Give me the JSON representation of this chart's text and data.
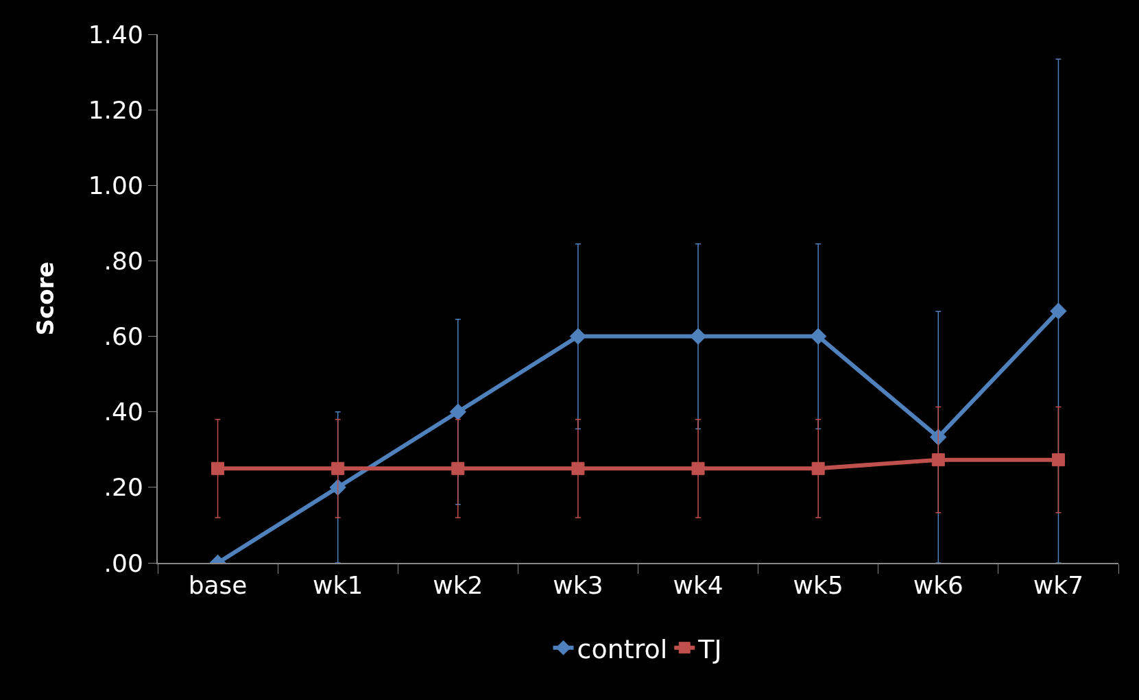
{
  "chart_data": {
    "type": "line",
    "ylabel": "Score",
    "categories": [
      "base",
      "wk1",
      "wk2",
      "wk3",
      "wk4",
      "wk5",
      "wk6",
      "wk7"
    ],
    "series": [
      {
        "name": "control",
        "color": "#4f81bd",
        "marker": "diamond",
        "values": [
          0,
          0.2,
          0.4,
          0.6,
          0.6,
          0.6,
          0.333,
          0.667
        ],
        "errors": [
          null,
          0.2,
          0.245,
          0.245,
          0.245,
          0.245,
          0.333,
          0.667
        ]
      },
      {
        "name": "TJ",
        "color": "#c0504d",
        "marker": "square",
        "values": [
          0.25,
          0.25,
          0.25,
          0.25,
          0.25,
          0.25,
          0.273,
          0.273
        ],
        "errors": [
          0.13,
          0.13,
          0.13,
          0.13,
          0.13,
          0.13,
          0.14,
          0.14
        ]
      }
    ],
    "ylim": [
      0,
      1.4
    ],
    "yticks": [
      {
        "value": 0,
        "label": ".00"
      },
      {
        "value": 0.2,
        "label": ".20"
      },
      {
        "value": 0.4,
        "label": ".40"
      },
      {
        "value": 0.6,
        "label": ".60"
      },
      {
        "value": 0.8,
        "label": ".80"
      },
      {
        "value": 1,
        "label": "1.00"
      },
      {
        "value": 1.2,
        "label": "1.20"
      },
      {
        "value": 1.4,
        "label": "1.40"
      }
    ],
    "grid": false,
    "legend": "bottom",
    "line_style": "solid"
  }
}
